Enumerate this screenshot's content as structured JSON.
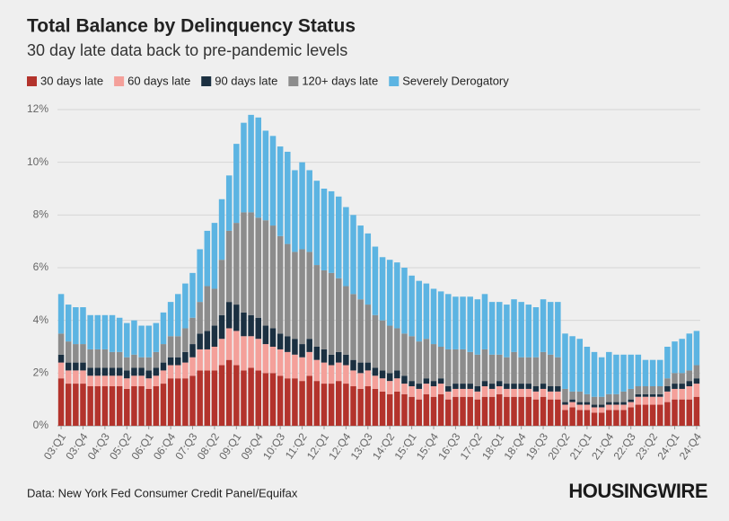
{
  "chart_data": {
    "type": "stacked_bar",
    "title": "Total Balance by Delinquency Status",
    "subtitle": "30 day late data back to pre-pandemic levels",
    "source": "Data: New York Fed Consumer Credit Panel/Equifax",
    "logo": "HOUSINGWIRE",
    "categories": [
      "03:Q1",
      null,
      null,
      "03:Q4",
      null,
      null,
      "04:Q3",
      null,
      null,
      "05:Q2",
      null,
      null,
      "06:Q1",
      null,
      null,
      "06:Q4",
      null,
      null,
      "07:Q3",
      null,
      null,
      "08:Q2",
      null,
      null,
      "09:Q1",
      null,
      null,
      "09:Q4",
      null,
      null,
      "10:Q3",
      null,
      null,
      "11:Q2",
      null,
      null,
      "12:Q1",
      null,
      null,
      "12:Q4",
      null,
      null,
      "13:Q3",
      null,
      null,
      "14:Q2",
      null,
      null,
      "15:Q1",
      null,
      null,
      "15:Q4",
      null,
      null,
      "16:Q3",
      null,
      null,
      "17:Q2",
      null,
      null,
      "18:Q1",
      null,
      null,
      "18:Q4",
      null,
      null,
      "19:Q3",
      null,
      null,
      "20:Q2",
      null,
      null,
      "21:Q1",
      null,
      null,
      "21:Q4",
      null,
      null,
      "22:Q3",
      null,
      null,
      "23:Q2",
      null,
      null,
      "24:Q1",
      null,
      null,
      "24:Q4"
    ],
    "series": [
      {
        "name": "30 days late",
        "color": "#b3332c",
        "values": [
          1.8,
          1.6,
          1.6,
          1.6,
          1.5,
          1.5,
          1.5,
          1.5,
          1.5,
          1.4,
          1.5,
          1.5,
          1.4,
          1.5,
          1.6,
          1.8,
          1.8,
          1.8,
          1.9,
          2.1,
          2.1,
          2.1,
          2.3,
          2.5,
          2.3,
          2.1,
          2.2,
          2.1,
          2.0,
          2.0,
          1.9,
          1.8,
          1.8,
          1.7,
          1.9,
          1.7,
          1.6,
          1.6,
          1.7,
          1.6,
          1.5,
          1.4,
          1.5,
          1.4,
          1.3,
          1.2,
          1.3,
          1.2,
          1.1,
          1.0,
          1.2,
          1.1,
          1.2,
          1.0,
          1.1,
          1.1,
          1.1,
          1.0,
          1.1,
          1.1,
          1.2,
          1.1,
          1.1,
          1.1,
          1.1,
          1.0,
          1.1,
          1.0,
          1.0,
          0.6,
          0.7,
          0.6,
          0.6,
          0.5,
          0.5,
          0.6,
          0.6,
          0.6,
          0.7,
          0.8,
          0.8,
          0.8,
          0.8,
          0.9,
          1.0,
          1.0,
          1.0,
          1.1
        ]
      },
      {
        "name": "60 days late",
        "color": "#f4a09a",
        "values": [
          0.6,
          0.5,
          0.5,
          0.5,
          0.4,
          0.4,
          0.4,
          0.4,
          0.4,
          0.4,
          0.4,
          0.4,
          0.4,
          0.4,
          0.5,
          0.5,
          0.5,
          0.6,
          0.7,
          0.8,
          0.8,
          0.9,
          1.0,
          1.2,
          1.3,
          1.3,
          1.2,
          1.2,
          1.1,
          1.0,
          1.0,
          1.0,
          0.9,
          0.9,
          0.9,
          0.8,
          0.8,
          0.7,
          0.7,
          0.7,
          0.6,
          0.6,
          0.6,
          0.5,
          0.5,
          0.5,
          0.5,
          0.4,
          0.4,
          0.4,
          0.4,
          0.4,
          0.4,
          0.3,
          0.3,
          0.3,
          0.3,
          0.3,
          0.4,
          0.3,
          0.3,
          0.3,
          0.3,
          0.3,
          0.3,
          0.3,
          0.3,
          0.3,
          0.3,
          0.2,
          0.2,
          0.2,
          0.2,
          0.2,
          0.2,
          0.2,
          0.2,
          0.2,
          0.2,
          0.3,
          0.3,
          0.3,
          0.3,
          0.4,
          0.4,
          0.4,
          0.5,
          0.5
        ]
      },
      {
        "name": "90 days late",
        "color": "#1b3041",
        "values": [
          0.3,
          0.3,
          0.3,
          0.3,
          0.3,
          0.3,
          0.3,
          0.3,
          0.3,
          0.3,
          0.3,
          0.3,
          0.3,
          0.3,
          0.3,
          0.3,
          0.3,
          0.4,
          0.5,
          0.6,
          0.7,
          0.8,
          0.9,
          1.0,
          1.0,
          0.9,
          0.8,
          0.8,
          0.7,
          0.7,
          0.6,
          0.6,
          0.6,
          0.5,
          0.5,
          0.5,
          0.5,
          0.4,
          0.4,
          0.4,
          0.4,
          0.4,
          0.3,
          0.3,
          0.3,
          0.3,
          0.3,
          0.3,
          0.2,
          0.2,
          0.2,
          0.2,
          0.2,
          0.2,
          0.2,
          0.2,
          0.2,
          0.2,
          0.2,
          0.2,
          0.2,
          0.2,
          0.2,
          0.2,
          0.2,
          0.2,
          0.2,
          0.2,
          0.2,
          0.1,
          0.1,
          0.1,
          0.1,
          0.1,
          0.1,
          0.1,
          0.1,
          0.1,
          0.1,
          0.1,
          0.1,
          0.1,
          0.1,
          0.2,
          0.2,
          0.2,
          0.2,
          0.2
        ]
      },
      {
        "name": "120+ days late",
        "color": "#8c8c8c",
        "values": [
          0.8,
          0.8,
          0.7,
          0.7,
          0.7,
          0.7,
          0.7,
          0.6,
          0.6,
          0.5,
          0.5,
          0.4,
          0.5,
          0.6,
          0.7,
          0.8,
          0.8,
          0.9,
          1.0,
          1.2,
          1.7,
          1.4,
          2.1,
          2.7,
          3.1,
          3.8,
          3.9,
          3.8,
          4.0,
          3.9,
          3.7,
          3.5,
          3.3,
          3.6,
          3.3,
          3.1,
          3.0,
          3.1,
          2.8,
          2.6,
          2.5,
          2.4,
          2.2,
          2.0,
          1.9,
          1.8,
          1.6,
          1.6,
          1.7,
          1.6,
          1.5,
          1.4,
          1.2,
          1.4,
          1.3,
          1.3,
          1.2,
          1.2,
          1.2,
          1.1,
          1.0,
          1.0,
          1.2,
          1.0,
          1.0,
          1.1,
          1.2,
          1.2,
          1.1,
          0.5,
          0.3,
          0.4,
          0.3,
          0.3,
          0.3,
          0.3,
          0.3,
          0.4,
          0.4,
          0.3,
          0.3,
          0.3,
          0.3,
          0.3,
          0.4,
          0.4,
          0.4,
          0.5
        ]
      },
      {
        "name": "Severely Derogatory",
        "color": "#5cb4e2",
        "values": [
          1.5,
          1.4,
          1.4,
          1.4,
          1.3,
          1.3,
          1.3,
          1.4,
          1.3,
          1.3,
          1.3,
          1.2,
          1.2,
          1.1,
          1.2,
          1.3,
          1.6,
          1.7,
          1.7,
          2.0,
          2.1,
          2.5,
          2.3,
          2.1,
          3.0,
          3.4,
          3.7,
          3.8,
          3.4,
          3.4,
          3.4,
          3.5,
          3.1,
          3.3,
          3.1,
          3.2,
          3.1,
          3.1,
          3.1,
          3.0,
          3.0,
          2.8,
          2.7,
          2.6,
          2.4,
          2.5,
          2.5,
          2.5,
          2.3,
          2.3,
          2.1,
          2.1,
          2.1,
          2.1,
          2.0,
          2.0,
          2.1,
          2.1,
          2.1,
          2.0,
          2.0,
          2.0,
          2.0,
          2.1,
          2.0,
          1.9,
          2.0,
          2.0,
          2.1,
          2.1,
          2.1,
          2.0,
          1.8,
          1.7,
          1.5,
          1.6,
          1.5,
          1.4,
          1.3,
          1.2,
          1.0,
          1.0,
          1.0,
          1.2,
          1.2,
          1.3,
          1.4,
          1.3
        ]
      }
    ],
    "ylim": [
      0,
      12
    ],
    "yticks": [
      {
        "value": 0,
        "label": "0%"
      },
      {
        "value": 2,
        "label": "2%"
      },
      {
        "value": 4,
        "label": "4%"
      },
      {
        "value": 6,
        "label": "6%"
      },
      {
        "value": 8,
        "label": "8%"
      },
      {
        "value": 10,
        "label": "10%"
      },
      {
        "value": 12,
        "label": "12%"
      }
    ],
    "grid": true,
    "legend": "top-left"
  }
}
